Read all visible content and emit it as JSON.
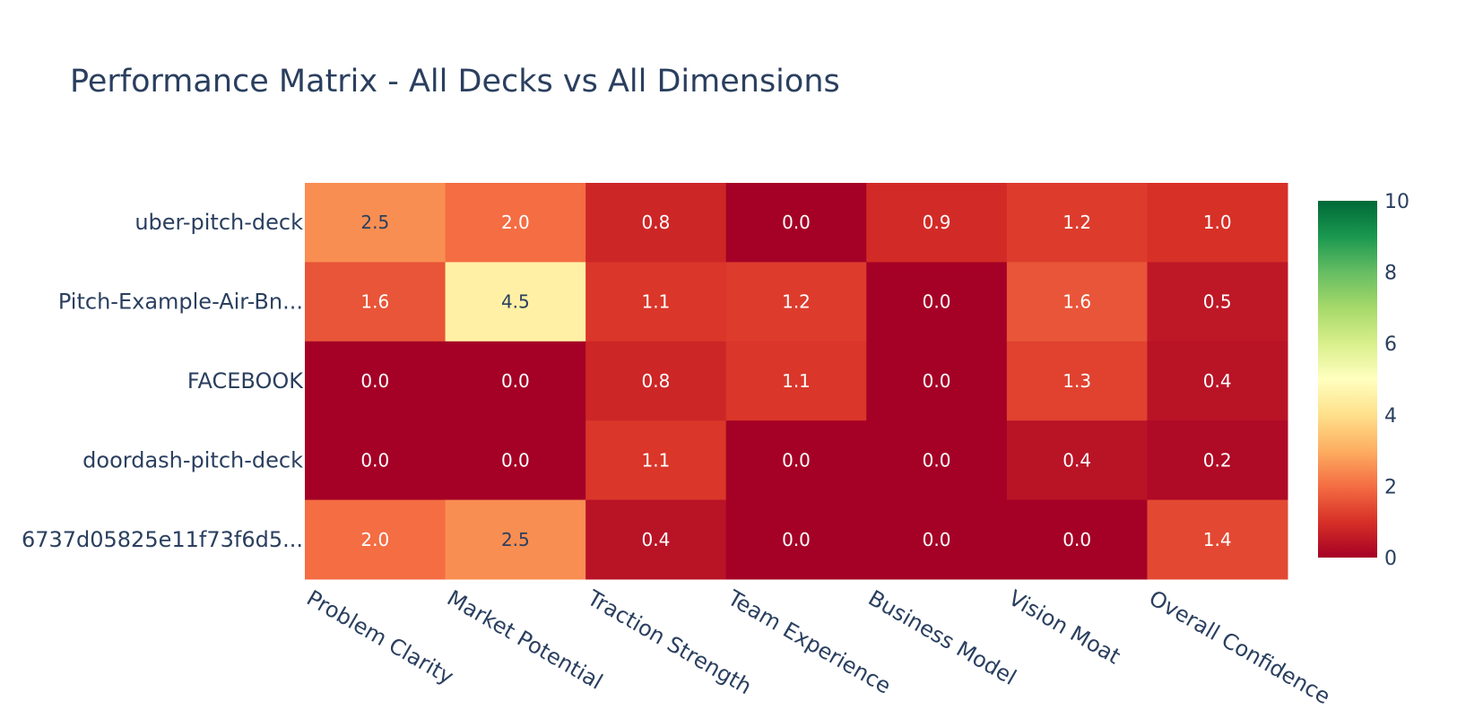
{
  "chart_data": {
    "type": "heatmap",
    "title": "Performance Matrix - All Decks vs All Dimensions",
    "rows": [
      "uber-pitch-deck",
      "Pitch-Example-Air-Bn...",
      "FACEBOOK",
      "doordash-pitch-deck",
      "6737d05825e11f73f6d5..."
    ],
    "columns": [
      "Problem Clarity",
      "Market Potential",
      "Traction Strength",
      "Team Experience",
      "Business Model",
      "Vision Moat",
      "Overall Confidence"
    ],
    "values": [
      [
        2.5,
        2.0,
        0.8,
        0.0,
        0.9,
        1.2,
        1.0
      ],
      [
        1.6,
        4.5,
        1.1,
        1.2,
        0.0,
        1.6,
        0.5
      ],
      [
        0.0,
        0.0,
        0.8,
        1.1,
        0.0,
        1.3,
        0.4
      ],
      [
        0.0,
        0.0,
        1.1,
        0.0,
        0.0,
        0.4,
        0.2
      ],
      [
        2.0,
        2.5,
        0.4,
        0.0,
        0.0,
        0.0,
        1.4
      ]
    ],
    "value_labels": [
      [
        "2.5",
        "2.0",
        "0.8",
        "0.0",
        "0.9",
        "1.2",
        "1.0"
      ],
      [
        "1.6",
        "4.5",
        "1.1",
        "1.2",
        "0.0",
        "1.6",
        "0.5"
      ],
      [
        "0.0",
        "0.0",
        "0.8",
        "1.1",
        "0.0",
        "1.3",
        "0.4"
      ],
      [
        "0.0",
        "0.0",
        "1.1",
        "0.0",
        "0.0",
        "0.4",
        "0.2"
      ],
      [
        "2.0",
        "2.5",
        "0.4",
        "0.0",
        "0.0",
        "0.0",
        "1.4"
      ]
    ],
    "zmin": 0,
    "zmax": 10,
    "colorscale": "RdYlGn",
    "colorbar_ticks": [
      "0",
      "2",
      "4",
      "6",
      "8",
      "10"
    ],
    "colors": {
      "scale": [
        "#a50026",
        "#d73027",
        "#f46d43",
        "#fdae61",
        "#fee08b",
        "#ffffbf",
        "#d9ef8b",
        "#a6d96a",
        "#66bd63",
        "#1a9850",
        "#006837"
      ],
      "text_dark": "#2a3f5f",
      "text_light": "#ffffff"
    }
  }
}
